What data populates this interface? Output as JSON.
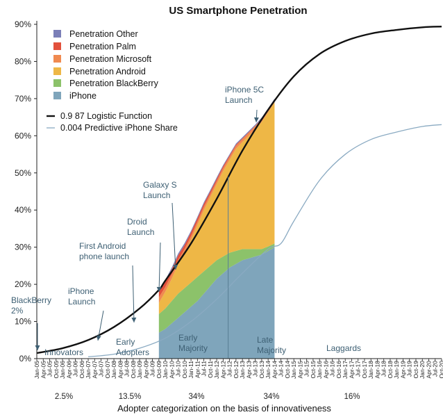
{
  "chart_data": {
    "type": "area",
    "title": "US Smartphone Penetration",
    "xlabel": "Adopter categorization on the basis of innovativeness",
    "ylabel": "",
    "ylim": [
      0,
      90
    ],
    "y_ticks": [
      "0%",
      "10%",
      "20%",
      "30%",
      "40%",
      "50%",
      "60%",
      "70%",
      "80%",
      "90%"
    ],
    "x_ticks": [
      "Jan-05",
      "Apr-05",
      "Jul-05",
      "Oct-05",
      "Jan-06",
      "Apr-06",
      "Jul-06",
      "Oct-06",
      "Jan-07",
      "Apr-07",
      "Jul-07",
      "Oct-07",
      "Jan-08",
      "Apr-08",
      "Jul-08",
      "Oct-08",
      "Jan-09",
      "Apr-09",
      "Jul-09",
      "Oct-09",
      "Jan-10",
      "Apr-10",
      "Jul-10",
      "Oct-10",
      "Jan-11",
      "Apr-11",
      "Jul-11",
      "Oct-11",
      "Jan-12",
      "Apr-12",
      "Jul-12",
      "Oct-12",
      "Jan-13",
      "Apr-13",
      "Jul-13",
      "Oct-13",
      "Jan-14",
      "Apr-14",
      "Jul-14",
      "Oct-14",
      "Jan-15",
      "Apr-15",
      "Jul-15",
      "Oct-15",
      "Jan-16",
      "Apr-16",
      "Jul-16",
      "Oct-16",
      "Jan-17",
      "Apr-17",
      "Jul-17",
      "Oct-17",
      "Jan-18",
      "Apr-18",
      "Jul-18",
      "Oct-18",
      "Jan-19",
      "Apr-19",
      "Jul-19",
      "Oct-19",
      "Jan-20",
      "Apr-20",
      "Jul-20",
      "Oct-20"
    ],
    "stacked_dates": [
      "Oct-09",
      "Jan-10",
      "Apr-10",
      "Jul-10",
      "Oct-10",
      "Jan-11",
      "Apr-11",
      "Jul-11",
      "Oct-11",
      "Jan-12",
      "Apr-12",
      "Jul-12",
      "Oct-12",
      "Jan-13",
      "Apr-13",
      "Jul-13",
      "Oct-13",
      "Jan-14",
      "Apr-14"
    ],
    "stacked_series": [
      {
        "name": "iPhone",
        "color": "#7fa5bb",
        "values": [
          7,
          8,
          9.5,
          11,
          12.5,
          14,
          15.5,
          17.5,
          19.5,
          21.5,
          23,
          24.5,
          25.5,
          26.5,
          27,
          27.5,
          28,
          29,
          30
        ]
      },
      {
        "name": "Penetration BlackBerry",
        "color": "#8cc26a",
        "values": [
          5,
          5.5,
          6,
          6.5,
          6.5,
          6.5,
          6.5,
          6,
          5.5,
          5,
          4.5,
          4,
          3.5,
          3,
          2.5,
          2,
          1.5,
          1.2,
          1
        ]
      },
      {
        "name": "Penetration Android",
        "color": "#eeb746",
        "values": [
          3,
          4.5,
          6,
          8,
          9.5,
          11.5,
          14,
          16.5,
          18.5,
          20.5,
          23,
          25,
          27.5,
          28.8,
          30.5,
          32.3,
          34.2,
          36.1,
          38
        ]
      },
      {
        "name": "Penetration Microsoft",
        "color": "#f08a50",
        "values": [
          1.5,
          1.3,
          1.2,
          1.1,
          1.0,
          1.0,
          0.9,
          0.9,
          0.8,
          0.8,
          0.8,
          0.8,
          0.8,
          0.8,
          0.8,
          0.8,
          0.8,
          0.7,
          0.7
        ]
      },
      {
        "name": "Penetration Palm",
        "color": "#e2513c",
        "values": [
          1.5,
          1.4,
          1.3,
          1.2,
          1.1,
          1.0,
          0.9,
          0.8,
          0.7,
          0.6,
          0.5,
          0.4,
          0.3,
          0.2,
          0.2,
          0.1,
          0.1,
          0.1,
          0.1
        ]
      },
      {
        "name": "Penetration Other",
        "color": "#7b7fb8",
        "values": [
          0.5,
          0.5,
          0.5,
          0.5,
          0.5,
          0.4,
          0.4,
          0.4,
          0.4,
          0.4,
          0.3,
          0.3,
          0.3,
          0.3,
          0.3,
          0.3,
          0.3,
          0.2,
          0.2
        ]
      }
    ],
    "line_series": [
      {
        "name": "0.9 87 Logistic Function",
        "color": "#111111",
        "x": [
          "Jan-05",
          "Jan-06",
          "Jan-07",
          "Jan-08",
          "Jan-09",
          "Oct-09",
          "Jan-10",
          "Jan-11",
          "Jan-12",
          "Jan-13",
          "Jan-14",
          "Jan-15",
          "Jan-16",
          "Jan-17",
          "Jan-18",
          "Jan-19",
          "Jan-20",
          "Oct-20"
        ],
        "values": [
          1.5,
          2.8,
          5.0,
          8.5,
          13.5,
          18.5,
          21,
          31,
          43,
          56,
          67,
          76,
          82,
          85.5,
          87.5,
          88.5,
          89.2,
          89.4
        ]
      },
      {
        "name": "0.004 Predictive iPhone Share",
        "color": "#8aaac2",
        "x": [
          "Jan-07",
          "Jan-08",
          "Jan-09",
          "Jan-10",
          "Jan-11",
          "Jan-12",
          "Jan-13",
          "Jan-14",
          "Jul-14",
          "Jan-15",
          "Jan-16",
          "Jan-17",
          "Jan-18",
          "Jan-19",
          "Jan-20",
          "Oct-20"
        ],
        "values": [
          0.5,
          1.2,
          2.8,
          5.5,
          10,
          16,
          23,
          29.5,
          31,
          37,
          48,
          55,
          59,
          61,
          62.5,
          63
        ]
      }
    ],
    "legend": {
      "placement": "top-left",
      "entries": [
        {
          "name": "Penetration Other",
          "color": "#7b7fb8",
          "kind": "box"
        },
        {
          "name": "Penetration Palm",
          "color": "#e2513c",
          "kind": "box"
        },
        {
          "name": "Penetration Microsoft",
          "color": "#f08a50",
          "kind": "box"
        },
        {
          "name": "Penetration Android",
          "color": "#eeb746",
          "kind": "box"
        },
        {
          "name": "Penetration BlackBerry",
          "color": "#8cc26a",
          "kind": "box"
        },
        {
          "name": "iPhone",
          "color": "#7fa5bb",
          "kind": "box"
        },
        {
          "name": "0.9 87 Logistic Function",
          "color": "#111111",
          "kind": "line"
        },
        {
          "name": "0.004 Predictive iPhone Share",
          "color": "#8aaac2",
          "kind": "line"
        }
      ]
    },
    "annotations": [
      {
        "lines": [
          "BlackBerry",
          "2%"
        ],
        "date": "Jan-05",
        "value": 1.5
      },
      {
        "lines": [
          "iPhone",
          "Launch"
        ],
        "date": "Jul-07",
        "value": 5.5
      },
      {
        "lines": [
          "First Android",
          "phone launch"
        ],
        "date": "Oct-08",
        "value": 9.5
      },
      {
        "lines": [
          "Droid",
          "Launch"
        ],
        "date": "Oct-09",
        "value": 18.5
      },
      {
        "lines": [
          "Galaxy S",
          "Launch"
        ],
        "date": "Jul-10",
        "value": 23.5
      },
      {
        "lines": [
          "iPhone 5C",
          "Launch"
        ],
        "date": "Oct-13",
        "value": 63
      }
    ],
    "segments": [
      {
        "lines": [
          "Innovators"
        ]
      },
      {
        "lines": [
          "Early",
          "Adopters"
        ]
      },
      {
        "lines": [
          "Early",
          "Majority"
        ]
      },
      {
        "lines": [
          "Late",
          "Majority"
        ]
      },
      {
        "lines": [
          "Laggards"
        ]
      }
    ],
    "segment_percentages": [
      "2.5%",
      "13.5%",
      "34%",
      "34%",
      "16%"
    ],
    "grid": false
  }
}
